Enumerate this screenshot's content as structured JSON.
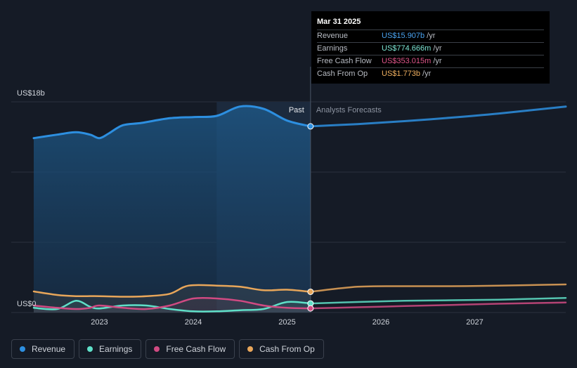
{
  "tooltip": {
    "date": "Mar 31 2025",
    "rows": [
      {
        "label": "Revenue",
        "value": "US$15.907b",
        "unit": "/yr",
        "color": "#4aa3f0"
      },
      {
        "label": "Earnings",
        "value": "US$774.666m",
        "unit": "/yr",
        "color": "#7ee8d6"
      },
      {
        "label": "Free Cash Flow",
        "value": "US$353.015m",
        "unit": "/yr",
        "color": "#e0558a"
      },
      {
        "label": "Cash From Op",
        "value": "US$1.773b",
        "unit": "/yr",
        "color": "#f0b060"
      }
    ]
  },
  "legend": [
    {
      "label": "Revenue",
      "color": "#2d8fe0"
    },
    {
      "label": "Earnings",
      "color": "#5fe0c8"
    },
    {
      "label": "Free Cash Flow",
      "color": "#d04a82"
    },
    {
      "label": "Cash From Op",
      "color": "#e8a65a"
    }
  ],
  "chart_data": {
    "type": "area",
    "y_top_label": "US$18b",
    "y_bottom_label": "US$0",
    "ylim": [
      0,
      18
    ],
    "xlim": [
      2022.3,
      2027.97
    ],
    "x_ticks": [
      2023,
      2024,
      2025,
      2026,
      2027
    ],
    "x_tick_labels": [
      "2023",
      "2024",
      "2025",
      "2026",
      "2027"
    ],
    "divider_x": 2025.25,
    "past_label": "Past",
    "forecast_label": "Analysts Forecasts",
    "highlight_start": 2024.25,
    "grid": true,
    "series": [
      {
        "name": "Revenue",
        "color": "#2d8fe0",
        "x": [
          2022.3,
          2022.55,
          2022.75,
          2022.9,
          2023.0,
          2023.1,
          2023.25,
          2023.45,
          2023.75,
          2024.0,
          2024.25,
          2024.5,
          2024.75,
          2025.0,
          2025.25
        ],
        "y": [
          14.9,
          15.2,
          15.4,
          15.2,
          14.9,
          15.3,
          16.0,
          16.2,
          16.6,
          16.7,
          16.8,
          17.6,
          17.4,
          16.4,
          15.907
        ],
        "forecast_x": [
          2025.25,
          2025.75,
          2026.25,
          2026.75,
          2027.25,
          2027.97
        ],
        "forecast_y": [
          15.907,
          16.1,
          16.35,
          16.65,
          17.0,
          17.6
        ]
      },
      {
        "name": "Earnings",
        "color": "#5fe0c8",
        "x": [
          2022.3,
          2022.55,
          2022.75,
          2022.9,
          2023.0,
          2023.25,
          2023.5,
          2023.75,
          2024.0,
          2024.25,
          2024.5,
          2024.75,
          2025.0,
          2025.25
        ],
        "y": [
          0.4,
          0.3,
          1.0,
          0.5,
          0.35,
          0.6,
          0.6,
          0.3,
          0.1,
          0.1,
          0.2,
          0.3,
          0.9,
          0.775
        ],
        "forecast_x": [
          2025.25,
          2025.75,
          2026.25,
          2026.75,
          2027.25,
          2027.97
        ],
        "forecast_y": [
          0.775,
          0.9,
          1.0,
          1.05,
          1.1,
          1.25
        ]
      },
      {
        "name": "Free Cash Flow",
        "color": "#d04a82",
        "x": [
          2022.3,
          2022.55,
          2022.75,
          2022.9,
          2023.0,
          2023.25,
          2023.5,
          2023.75,
          2024.0,
          2024.25,
          2024.5,
          2024.75,
          2025.0,
          2025.25
        ],
        "y": [
          0.6,
          0.4,
          0.3,
          0.4,
          0.6,
          0.4,
          0.3,
          0.6,
          1.2,
          1.2,
          1.0,
          0.6,
          0.4,
          0.353
        ],
        "forecast_x": [
          2025.25,
          2025.75,
          2026.25,
          2026.75,
          2027.25,
          2027.97
        ],
        "forecast_y": [
          0.353,
          0.45,
          0.55,
          0.65,
          0.75,
          0.85
        ]
      },
      {
        "name": "Cash From Op",
        "color": "#e8a65a",
        "x": [
          2022.3,
          2022.55,
          2022.75,
          2023.0,
          2023.25,
          2023.5,
          2023.75,
          2023.95,
          2024.25,
          2024.5,
          2024.75,
          2025.0,
          2025.25
        ],
        "y": [
          1.8,
          1.5,
          1.4,
          1.4,
          1.35,
          1.4,
          1.6,
          2.3,
          2.3,
          2.2,
          1.9,
          1.95,
          1.773
        ],
        "forecast_x": [
          2025.25,
          2025.75,
          2026.25,
          2026.75,
          2027.25,
          2027.97
        ],
        "forecast_y": [
          1.773,
          2.2,
          2.25,
          2.25,
          2.3,
          2.4
        ]
      }
    ]
  }
}
